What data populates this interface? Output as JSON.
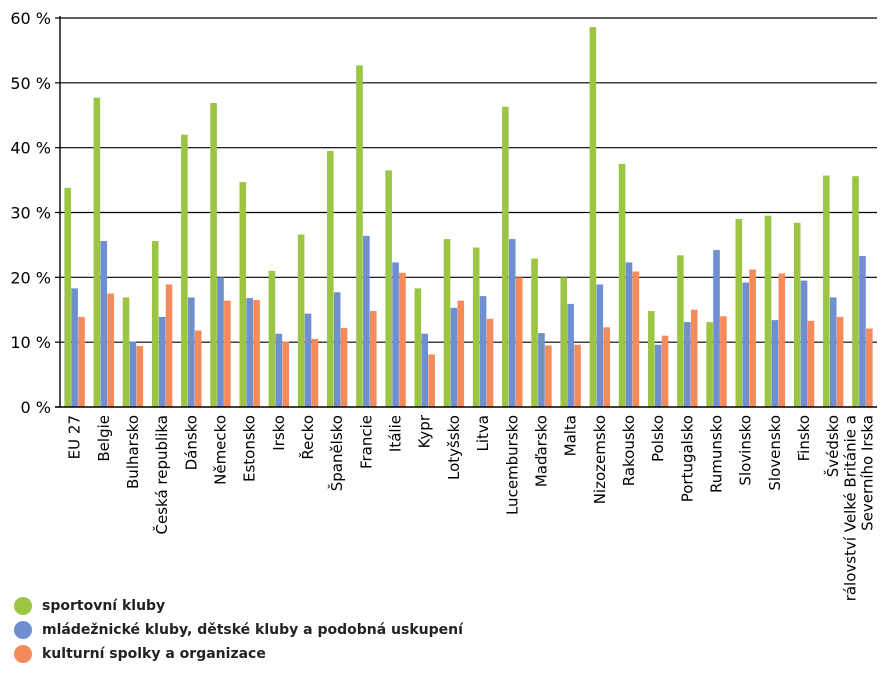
{
  "chart_data": {
    "type": "bar",
    "ylim": [
      0,
      60
    ],
    "yticks": [
      0,
      10,
      20,
      30,
      40,
      50,
      60
    ],
    "ytick_labels": [
      "0 %",
      "10 %",
      "20 %",
      "30 %",
      "40 %",
      "50 %",
      "60 %"
    ],
    "grid": "horizontal",
    "legend_position": "bottom-left",
    "categories": [
      "EU 27",
      "Belgie",
      "Bulharsko",
      "Česká republika",
      "Dánsko",
      "Německo",
      "Estonsko",
      "Irsko",
      "Řecko",
      "Španělsko",
      "Francie",
      "Itálie",
      "Kypr",
      "Lotyšsko",
      "Litva",
      "Lucembursko",
      "Maďarsko",
      "Malta",
      "Nizozemsko",
      "Rakousko",
      "Polsko",
      "Portugalsko",
      "Rumunsko",
      "Slovinsko",
      "Slovensko",
      "Finsko",
      "Švédsko",
      "Spojené království Velké Británie a Severního Irska"
    ],
    "series": [
      {
        "name": "sportovní kluby",
        "color": "#9dc544",
        "values": [
          33.8,
          47.7,
          16.9,
          25.6,
          42.0,
          46.9,
          34.7,
          21.0,
          26.6,
          39.5,
          52.7,
          36.5,
          18.3,
          25.9,
          24.6,
          46.3,
          22.9,
          20.0,
          58.6,
          37.5,
          14.8,
          23.4,
          13.1,
          29.0,
          29.5,
          28.4,
          35.7,
          35.6
        ]
      },
      {
        "name": "mládežnické kluby, dětské kluby a podobná uskupení",
        "color": "#6f8fd0",
        "values": [
          18.3,
          25.6,
          10.1,
          13.9,
          16.9,
          20.0,
          16.8,
          11.3,
          14.4,
          17.7,
          26.4,
          22.3,
          11.3,
          15.3,
          17.1,
          25.9,
          11.4,
          15.9,
          18.9,
          22.3,
          9.6,
          13.1,
          24.2,
          19.2,
          13.4,
          19.5,
          16.9,
          23.3
        ]
      },
      {
        "name": "kulturní spolky a organizace",
        "color": "#f58a5a",
        "values": [
          13.9,
          17.5,
          9.4,
          18.9,
          11.8,
          16.4,
          16.5,
          10.1,
          10.5,
          12.2,
          14.8,
          20.7,
          8.1,
          16.4,
          13.6,
          20.0,
          9.5,
          9.6,
          12.3,
          20.9,
          11.0,
          15.0,
          14.0,
          21.2,
          20.6,
          13.3,
          13.9,
          12.1
        ]
      }
    ]
  }
}
